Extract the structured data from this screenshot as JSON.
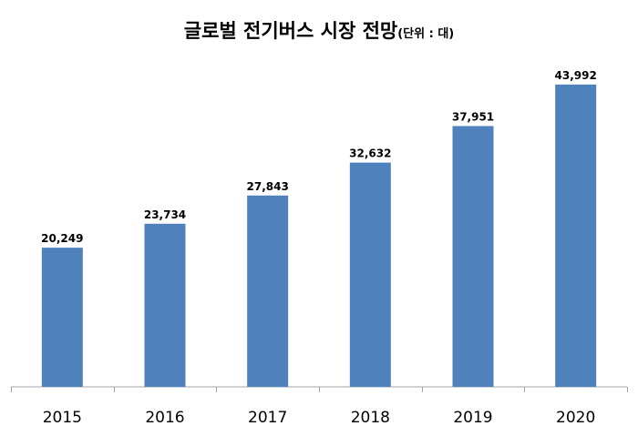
{
  "chart_data": {
    "type": "bar",
    "title": "글로벌 전기버스 시장 전망",
    "subtitle": "(단위 : 대)",
    "categories": [
      "2015",
      "2016",
      "2017",
      "2018",
      "2019",
      "2020"
    ],
    "values": [
      20249,
      23734,
      27843,
      32632,
      37951,
      43992
    ],
    "data_labels": [
      "20,249",
      "23,734",
      "27,843",
      "32,632",
      "37,951",
      "43,992"
    ],
    "ylim": [
      0,
      50000
    ],
    "grid": false,
    "legend": "none",
    "bar_color": "#4f81bd",
    "axis_color": "#a6a6a6"
  }
}
